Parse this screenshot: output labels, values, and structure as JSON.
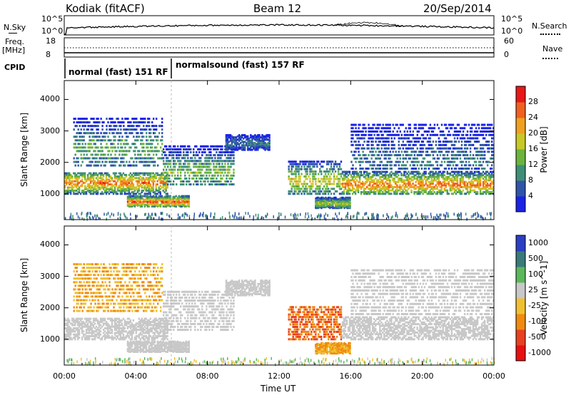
{
  "header": {
    "station": "Kodiak (fitACF)",
    "beam": "Beam 12",
    "date": "20/Sep/2014"
  },
  "side_labels": {
    "nsky": "N.Sky",
    "nsearch": "N.Search",
    "freq": "Freq.",
    "freq_unit": "[MHz]",
    "nave": "Nave",
    "cpid": "CPID",
    "nsky_top": "10^5",
    "nsky_bottom": "10^0",
    "nsearch_top": "10^5",
    "nsearch_bottom": "10^0",
    "freq_top": "18",
    "freq_bottom": "8",
    "nave_top": "60",
    "nave_bottom": "0"
  },
  "cpid_segments": [
    {
      "label": "normal (fast) 151 RF",
      "start_hour": 0,
      "end_hour": 6.0
    },
    {
      "label": "normalsound (fast) 157 RF",
      "start_hour": 6.0,
      "end_hour": 24
    }
  ],
  "chart_data": [
    {
      "type": "heatmap",
      "quantity": "Power",
      "colorbar_label": "Power [dB]",
      "colorbar_ticks": [
        "4",
        "8",
        "12",
        "16",
        "20",
        "24",
        "28"
      ],
      "colorbar_range": [
        0,
        30
      ],
      "colorbar_colors": [
        "#1a23e6",
        "#2f55a8",
        "#3f8f78",
        "#6cb43c",
        "#c8c828",
        "#f0a020",
        "#f06020",
        "#e81818"
      ],
      "ylabel": "Slant Range [km]",
      "y_ticks": [
        "1000",
        "2000",
        "3000",
        "4000"
      ],
      "ylim": [
        180,
        4600
      ],
      "xlabel": "Time UT",
      "x_ticks": [
        "00:00",
        "04:00",
        "08:00",
        "12:00",
        "16:00",
        "20:00",
        "00:00"
      ],
      "xlim": [
        0,
        24
      ],
      "echo_regions": [
        {
          "t": [
            0,
            5.8
          ],
          "r": [
            1000,
            1700
          ],
          "core": 1350,
          "level": 24
        },
        {
          "t": [
            5.5,
            9.5
          ],
          "r": [
            1300,
            2600
          ],
          "core": 1700,
          "level": 14
        },
        {
          "t": [
            9.0,
            11.5
          ],
          "r": [
            2400,
            2900
          ],
          "core": 2600,
          "level": 8
        },
        {
          "t": [
            3.5,
            7.0
          ],
          "r": [
            600,
            950
          ],
          "core": 750,
          "level": 26
        },
        {
          "t": [
            0.5,
            5.5
          ],
          "r": [
            1900,
            3500
          ],
          "core": 2400,
          "level": 12
        },
        {
          "t": [
            12.5,
            15.5
          ],
          "r": [
            1000,
            2100
          ],
          "core": 1400,
          "level": 18
        },
        {
          "t": [
            14.0,
            16.0
          ],
          "r": [
            550,
            900
          ],
          "core": 700,
          "level": 16
        },
        {
          "t": [
            15.5,
            24
          ],
          "r": [
            1000,
            1750
          ],
          "core": 1300,
          "level": 24
        },
        {
          "t": [
            16.0,
            24
          ],
          "r": [
            1800,
            3300
          ],
          "core": 2100,
          "level": 8
        }
      ]
    },
    {
      "type": "heatmap",
      "quantity": "Velocity",
      "colorbar_label": "Velocity [m s^-1]",
      "colorbar_ticks": [
        "1000",
        "500",
        "100",
        "25",
        "-25",
        "-100",
        "-500",
        "-1000"
      ],
      "colorbar_range": [
        -1000,
        1000
      ],
      "colorbar_colors": [
        "#2a3fc4",
        "#3a7a7a",
        "#5cb85c",
        "#c8c8c8",
        "#f0c030",
        "#f08a10",
        "#e84020",
        "#e81010"
      ],
      "ylabel": "Slant Range [km]",
      "y_ticks": [
        "1000",
        "2000",
        "3000",
        "4000"
      ],
      "ylim": [
        180,
        4600
      ],
      "xlabel": "Time UT",
      "x_ticks": [
        "00:00",
        "04:00",
        "08:00",
        "12:00",
        "16:00",
        "20:00",
        "00:00"
      ],
      "xlim": [
        0,
        24
      ],
      "echo_regions": [
        {
          "t": [
            0,
            5.8
          ],
          "r": [
            1000,
            1700
          ],
          "velocity": 0
        },
        {
          "t": [
            5.5,
            9.5
          ],
          "r": [
            1300,
            2600
          ],
          "velocity": 0
        },
        {
          "t": [
            9.0,
            11.5
          ],
          "r": [
            2400,
            2900
          ],
          "velocity": 0
        },
        {
          "t": [
            3.5,
            7.0
          ],
          "r": [
            600,
            950
          ],
          "velocity": 0
        },
        {
          "t": [
            0.5,
            5.5
          ],
          "r": [
            1900,
            3500
          ],
          "velocity": -100
        },
        {
          "t": [
            12.5,
            15.5
          ],
          "r": [
            1000,
            2100
          ],
          "velocity": -500
        },
        {
          "t": [
            14.0,
            16.0
          ],
          "r": [
            550,
            900
          ],
          "velocity": -100
        },
        {
          "t": [
            15.5,
            24
          ],
          "r": [
            1000,
            1750
          ],
          "velocity": 0
        },
        {
          "t": [
            16.0,
            24
          ],
          "r": [
            1800,
            3300
          ],
          "velocity": 0
        }
      ]
    }
  ]
}
